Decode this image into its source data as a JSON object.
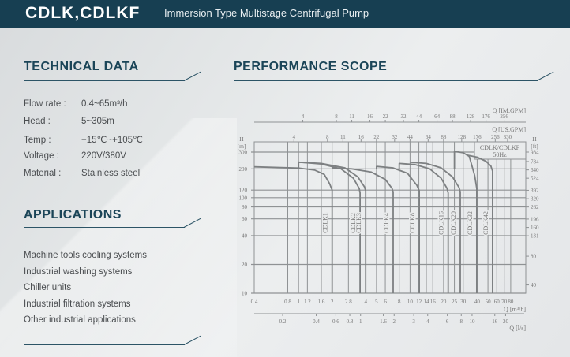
{
  "header": {
    "title": "CDLK,CDLKF",
    "subtitle": "Immersion Type Multistage Centrifugal Pump"
  },
  "technical": {
    "title": "TECHNICAL DATA",
    "rows": [
      {
        "label": "Flow rate :",
        "value": "0.4~65m³/h"
      },
      {
        "label": "Head :",
        "value": "5~305m"
      },
      {
        "label": "Temp :",
        "value": "−15℃~+105℃"
      },
      {
        "label": "Voltage :",
        "value": "220V/380V"
      },
      {
        "label": "Material :",
        "value": "Stainless steel"
      }
    ]
  },
  "applications": {
    "title": "APPLICATIONS",
    "items": [
      "Machine tools cooling systems",
      "Industrial washing systems",
      "Chiller units",
      "Industrial filtration systems",
      "Other industrial applications"
    ]
  },
  "performance": {
    "title": "PERFORMANCE SCOPE"
  },
  "chart_data": {
    "type": "line",
    "title": "CDLK/CDLKF 50Hz",
    "legend_box": [
      "CDLK/CDLKF",
      "50Hz"
    ],
    "x_scale": "log",
    "y_scale": "log",
    "xlabel": "Q [m³/h]",
    "xlim": [
      0.4,
      80
    ],
    "x_ticks": [
      0.4,
      0.8,
      1,
      1.2,
      1.6,
      2,
      2.8,
      4,
      5,
      6,
      8,
      10,
      12,
      14,
      16,
      20,
      25,
      30,
      40,
      50,
      60,
      70,
      80
    ],
    "ylabel": "H [m]",
    "ylim": [
      10,
      300
    ],
    "y_ticks": [
      10,
      20,
      40,
      60,
      80,
      100,
      120,
      200,
      300
    ],
    "y2label": "H [ft]",
    "y2_ticks": [
      984,
      784,
      640,
      524,
      392,
      320,
      262,
      196,
      160,
      131,
      80,
      40
    ],
    "top_axis_im": {
      "label": "Q [IM.GPM]",
      "ticks": [
        4,
        8,
        11,
        16,
        22,
        32,
        44,
        64,
        88,
        128,
        176,
        256
      ]
    },
    "top_axis_us": {
      "label": "Q [US.GPM]",
      "ticks": [
        4,
        8,
        11,
        16,
        22,
        32,
        44,
        64,
        88,
        128,
        176,
        256,
        330
      ]
    },
    "bottom_axis_ls": {
      "label": "Q [l/s]",
      "ticks": [
        0.2,
        0.4,
        0.6,
        0.8,
        1,
        1.6,
        2,
        3,
        4,
        6,
        8,
        10,
        16,
        20
      ]
    },
    "series": [
      {
        "name": "CDLK1",
        "points": [
          [
            0.4,
            210
          ],
          [
            1,
            204
          ],
          [
            1.4,
            194
          ],
          [
            1.7,
            175
          ],
          [
            1.9,
            140
          ],
          [
            2,
            120
          ],
          [
            2,
            10
          ]
        ]
      },
      {
        "name": "CDLK2",
        "points": [
          [
            1,
            200
          ],
          [
            1,
            235
          ],
          [
            1.6,
            225
          ],
          [
            2.4,
            200
          ],
          [
            3.1,
            160
          ],
          [
            3.5,
            125
          ],
          [
            3.56,
            112
          ],
          [
            3.56,
            10
          ]
        ]
      },
      {
        "name": "CDLK3",
        "points": [
          [
            1,
            235
          ],
          [
            1.6,
            228
          ],
          [
            2.6,
            205
          ],
          [
            3.4,
            165
          ],
          [
            3.9,
            130
          ],
          [
            4,
            118
          ],
          [
            4,
            10
          ]
        ]
      },
      {
        "name": "CDLK4",
        "points": [
          [
            2,
            205
          ],
          [
            3,
            200
          ],
          [
            4.5,
            185
          ],
          [
            6,
            155
          ],
          [
            6.9,
            125
          ],
          [
            7.05,
            115
          ],
          [
            7.05,
            10
          ]
        ]
      },
      {
        "name": "CDLK8",
        "points": [
          [
            5,
            200
          ],
          [
            5,
            212
          ],
          [
            7,
            205
          ],
          [
            9.5,
            180
          ],
          [
            11.5,
            135
          ],
          [
            12.1,
            118
          ],
          [
            12.1,
            10
          ]
        ]
      },
      {
        "name": "CDLK16",
        "points": [
          [
            8,
            200
          ],
          [
            8,
            228
          ],
          [
            11,
            222
          ],
          [
            15,
            200
          ],
          [
            19,
            160
          ],
          [
            21.5,
            125
          ],
          [
            22,
            112
          ],
          [
            22,
            10
          ]
        ]
      },
      {
        "name": "CDLK20",
        "points": [
          [
            10,
            235
          ],
          [
            14,
            228
          ],
          [
            19,
            205
          ],
          [
            24,
            165
          ],
          [
            27.5,
            128
          ],
          [
            28.2,
            115
          ],
          [
            28.2,
            10
          ]
        ]
      },
      {
        "name": "CDLK32",
        "points": [
          [
            25,
            200
          ],
          [
            25,
            305
          ],
          [
            30,
            295
          ],
          [
            34,
            270
          ],
          [
            38,
            170
          ],
          [
            39.7,
            125
          ],
          [
            39.7,
            10
          ]
        ]
      },
      {
        "name": "CDLK42",
        "points": [
          [
            32,
            280
          ],
          [
            40,
            265
          ],
          [
            48,
            240
          ],
          [
            53,
            215
          ],
          [
            55,
            190
          ],
          [
            55,
            10
          ]
        ]
      }
    ]
  }
}
